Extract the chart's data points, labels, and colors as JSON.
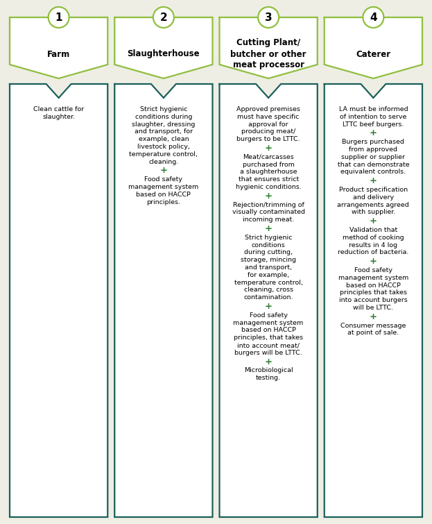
{
  "background_color": "#eeeee4",
  "border_color_light": "#8fbe3e",
  "border_color_dark": "#1a5f5a",
  "circle_color": "#8fbe3e",
  "plus_color": "#2e7d32",
  "fig_width": 6.23,
  "fig_height": 7.55,
  "dpi": 100,
  "columns": [
    {
      "number": "1",
      "title": "Farm",
      "content_lines": [
        "Clean cattle for",
        "slaughter."
      ]
    },
    {
      "number": "2",
      "title": "Slaughterhouse",
      "content_lines": [
        "Strict hygienic",
        "conditions during",
        "slaughter, dressing",
        "and transport, for",
        "example, clean",
        "livestock policy,",
        "temperature control,",
        "cleaning.",
        "+",
        "Food safety",
        "management system",
        "based on HACCP",
        "principles."
      ]
    },
    {
      "number": "3",
      "title": "Cutting Plant/\nbutcher or other\nmeat processor",
      "content_lines": [
        "Approved premises",
        "must have specific",
        "approval for",
        "producing meat/",
        "burgers to be LTTC.",
        "+",
        "Meat/carcasses",
        "purchased from",
        "a slaughterhouse",
        "that ensures strict",
        "hygienic conditions.",
        "+",
        "Rejection/trimming of",
        "visually contaminated",
        "incoming meat.",
        "+",
        "Strict hygienic",
        "conditions",
        "during cutting,",
        "storage, mincing",
        "and transport,",
        "for example,",
        "temperature control,",
        "cleaning, cross",
        "contamination.",
        "+",
        "Food safety",
        "management system",
        "based on HACCP",
        "principles, that takes",
        "into account meat/",
        "burgers will be LTTC.",
        "+",
        "Microbiological",
        "testing."
      ]
    },
    {
      "number": "4",
      "title": "Caterer",
      "content_lines": [
        "LA must be informed",
        "of intention to serve",
        "LTTC beef burgers.",
        "+",
        "Burgers purchased",
        "from approved",
        "supplier or supplier",
        "that can demonstrate",
        "equivalent controls.",
        "+",
        "Product specification",
        "and delivery",
        "arrangements agreed",
        "with supplier.",
        "+",
        "Validation that",
        "method of cooking",
        "results in 4 log",
        "reduction of bacteria.",
        "+",
        "Food safety",
        "management system",
        "based on HACCP",
        "principles that takes",
        "into account burgers",
        "will be LTTC.",
        "+",
        "Consumer message",
        "at point of sale."
      ]
    }
  ]
}
